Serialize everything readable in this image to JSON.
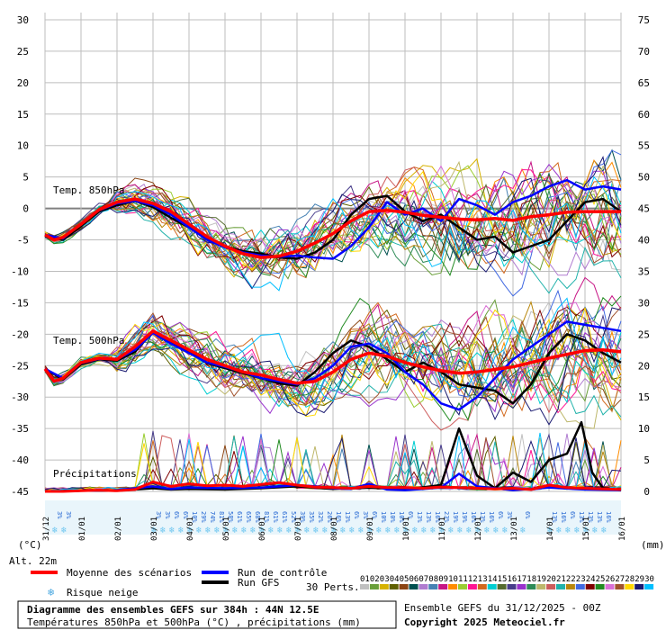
{
  "chart_data": {
    "type": "line",
    "title": "Diagramme des ensembles GEFS sur 384h : 44N 12.5E",
    "subtitle": "Températures 850hPa et 500hPa (°C) , précipitations (mm)",
    "run_info": "Ensemble GEFS du 31/12/2025 - 00Z",
    "copyright": "Copyright 2025 Meteociel.fr",
    "left_axis_label": "(°C)",
    "right_axis_label": "(mm)",
    "altitude": "Alt. 22m",
    "left_ticks": [
      "30",
      "25",
      "20",
      "15",
      "10",
      "5",
      "0",
      "-5",
      "-10",
      "-15",
      "-20",
      "-25",
      "-30",
      "-35",
      "-40",
      "-45"
    ],
    "right_ticks": [
      "75",
      "70",
      "65",
      "60",
      "55",
      "50",
      "45",
      "40",
      "35",
      "30",
      "25",
      "20",
      "15",
      "10",
      "5",
      "0"
    ],
    "ylim_left": [
      -45,
      30
    ],
    "ylim_right": [
      0,
      75
    ],
    "date_labels": [
      "31/12",
      "01/01",
      "02/01",
      "03/01",
      "04/01",
      "05/01",
      "06/01",
      "07/01",
      "08/01",
      "09/01",
      "10/01",
      "11/01",
      "12/01",
      "13/01",
      "14/01",
      "15/01",
      "16/01"
    ],
    "panel_labels": {
      "t850": "Temp. 850hPa",
      "t500": "Temp. 500hPa",
      "precip": "Précipitations"
    },
    "legend": {
      "mean": "Moyenne des scénarios",
      "control": "Run de contrôle",
      "gfs": "Run GFS",
      "snow": "Risque neige",
      "perts": "30 Perts."
    },
    "perturbation_numbers": [
      "01",
      "02",
      "03",
      "04",
      "05",
      "06",
      "07",
      "08",
      "09",
      "10",
      "11",
      "12",
      "13",
      "14",
      "15",
      "16",
      "17",
      "18",
      "19",
      "20",
      "21",
      "22",
      "23",
      "24",
      "25",
      "26",
      "27",
      "28",
      "29",
      "30"
    ],
    "perturbation_colors": [
      "#c0c0c0",
      "#6a9f3a",
      "#d6b200",
      "#606000",
      "#8b4513",
      "#005050",
      "#b07cd0",
      "#4682b4",
      "#c71585",
      "#ff8c00",
      "#9acd32",
      "#ff1493",
      "#d2691e",
      "#00ced1",
      "#556b2f",
      "#483d8b",
      "#9932cc",
      "#2e8b57",
      "#bdb76b",
      "#cd5c5c",
      "#20b2aa",
      "#b8860b",
      "#4169e1",
      "#800000",
      "#228b22",
      "#da70d6",
      "#a0522d",
      "#ffd700",
      "#191970",
      "#00bfff"
    ],
    "series_colors": {
      "mean": "#ff0000",
      "control": "#0000ff",
      "gfs": "#000000",
      "snow": "#6ec6f0"
    },
    "snow_percent": [
      {
        "day": 0.25,
        "value": "3%"
      },
      {
        "day": 0.5,
        "value": "3%"
      },
      {
        "day": 3.0,
        "value": "3%"
      },
      {
        "day": 3.25,
        "value": "3%"
      },
      {
        "day": 3.5,
        "value": "6%"
      },
      {
        "day": 3.75,
        "value": "6%"
      },
      {
        "day": 4.0,
        "value": "10%"
      },
      {
        "day": 4.25,
        "value": "29%"
      },
      {
        "day": 4.5,
        "value": "74%"
      },
      {
        "day": 4.75,
        "value": "81%"
      },
      {
        "day": 5.0,
        "value": "58%"
      },
      {
        "day": 5.25,
        "value": "61%"
      },
      {
        "day": 5.5,
        "value": "65%"
      },
      {
        "day": 5.75,
        "value": "68%"
      },
      {
        "day": 6.0,
        "value": "81%"
      },
      {
        "day": 6.25,
        "value": "61%"
      },
      {
        "day": 6.5,
        "value": "61%"
      },
      {
        "day": 6.75,
        "value": "52%"
      },
      {
        "day": 7.0,
        "value": "39%"
      },
      {
        "day": 7.25,
        "value": "35%"
      },
      {
        "day": 7.5,
        "value": "32%"
      },
      {
        "day": 7.75,
        "value": "26%"
      },
      {
        "day": 8.0,
        "value": "16%"
      },
      {
        "day": 8.25,
        "value": "13%"
      },
      {
        "day": 8.5,
        "value": "6%"
      },
      {
        "day": 8.75,
        "value": "3%"
      },
      {
        "day": 9.0,
        "value": "6%"
      },
      {
        "day": 9.25,
        "value": "10%"
      },
      {
        "day": 9.5,
        "value": "10%"
      },
      {
        "day": 9.75,
        "value": "10%"
      },
      {
        "day": 10.0,
        "value": "6%"
      },
      {
        "day": 10.25,
        "value": "13%"
      },
      {
        "day": 10.5,
        "value": "13%"
      },
      {
        "day": 10.75,
        "value": "16%"
      },
      {
        "day": 11.0,
        "value": "23%"
      },
      {
        "day": 11.25,
        "value": "19%"
      },
      {
        "day": 11.5,
        "value": "19%"
      },
      {
        "day": 11.75,
        "value": "16%"
      },
      {
        "day": 12.0,
        "value": "13%"
      },
      {
        "day": 12.25,
        "value": "16%"
      },
      {
        "day": 12.5,
        "value": "6%"
      },
      {
        "day": 12.75,
        "value": "3%"
      },
      {
        "day": 13.25,
        "value": "6%"
      },
      {
        "day": 14.0,
        "value": "13%"
      },
      {
        "day": 14.25,
        "value": "16%"
      },
      {
        "day": 14.5,
        "value": "6%"
      },
      {
        "day": 14.75,
        "value": "13%"
      },
      {
        "day": 15.0,
        "value": "13%"
      },
      {
        "day": 15.25,
        "value": "13%"
      },
      {
        "day": 15.5,
        "value": "16%"
      }
    ],
    "t850_mean": [
      [
        0,
        -4.2
      ],
      [
        0.25,
        -5
      ],
      [
        0.5,
        -4.6
      ],
      [
        1,
        -2.5
      ],
      [
        1.5,
        -0.2
      ],
      [
        2,
        1.0
      ],
      [
        2.5,
        1.5
      ],
      [
        3,
        0.8
      ],
      [
        3.5,
        -0.5
      ],
      [
        4,
        -2.5
      ],
      [
        4.5,
        -4.5
      ],
      [
        5,
        -6
      ],
      [
        5.5,
        -7.2
      ],
      [
        6,
        -7.8
      ],
      [
        6.5,
        -7.6
      ],
      [
        7,
        -6.8
      ],
      [
        7.5,
        -5.5
      ],
      [
        8,
        -4
      ],
      [
        8.5,
        -2
      ],
      [
        9,
        -0.5
      ],
      [
        9.5,
        -0.3
      ],
      [
        10,
        -0.6
      ],
      [
        10.5,
        -1.1
      ],
      [
        11,
        -1.4
      ],
      [
        11.5,
        -1.7
      ],
      [
        12,
        -1.8
      ],
      [
        12.5,
        -1.6
      ],
      [
        13,
        -1.9
      ],
      [
        13.5,
        -1.3
      ],
      [
        14,
        -1.0
      ],
      [
        14.5,
        -0.6
      ],
      [
        15,
        -0.5
      ],
      [
        15.5,
        -0.5
      ],
      [
        16,
        -0.5
      ]
    ],
    "t850_control": [
      [
        0,
        -4.2
      ],
      [
        0.5,
        -4.8
      ],
      [
        1,
        -2.4
      ],
      [
        1.5,
        -0.3
      ],
      [
        2,
        0.8
      ],
      [
        2.5,
        1.2
      ],
      [
        3,
        0.5
      ],
      [
        3.5,
        -1
      ],
      [
        4,
        -3
      ],
      [
        4.5,
        -5
      ],
      [
        5,
        -6.2
      ],
      [
        5.5,
        -7
      ],
      [
        6,
        -7.5
      ],
      [
        6.5,
        -7.7
      ],
      [
        7,
        -7.5
      ],
      [
        7.5,
        -7.8
      ],
      [
        8,
        -8
      ],
      [
        8.5,
        -6
      ],
      [
        9,
        -3
      ],
      [
        9.5,
        1
      ],
      [
        10,
        -1
      ],
      [
        10.5,
        0
      ],
      [
        11,
        -2
      ],
      [
        11.5,
        1.5
      ],
      [
        12,
        0.5
      ],
      [
        12.5,
        -1
      ],
      [
        13,
        1
      ],
      [
        13.5,
        2
      ],
      [
        14,
        3.5
      ],
      [
        14.5,
        4.5
      ],
      [
        15,
        3
      ],
      [
        15.5,
        3.5
      ],
      [
        16,
        3
      ]
    ],
    "t850_gfs": [
      [
        0,
        -4.2
      ],
      [
        0.5,
        -5
      ],
      [
        1,
        -2.8
      ],
      [
        1.5,
        -0.5
      ],
      [
        2,
        0.5
      ],
      [
        2.5,
        1.2
      ],
      [
        3,
        0.2
      ],
      [
        3.5,
        -1.5
      ],
      [
        4,
        -3
      ],
      [
        4.5,
        -4.8
      ],
      [
        5,
        -6
      ],
      [
        5.5,
        -6.8
      ],
      [
        6,
        -7.2
      ],
      [
        6.5,
        -7.8
      ],
      [
        7,
        -8
      ],
      [
        7.5,
        -7
      ],
      [
        8,
        -5
      ],
      [
        8.5,
        -1
      ],
      [
        9,
        1.5
      ],
      [
        9.5,
        2
      ],
      [
        10,
        -0.5
      ],
      [
        10.5,
        -2
      ],
      [
        11,
        -1
      ],
      [
        11.5,
        -3
      ],
      [
        12,
        -5
      ],
      [
        12.5,
        -4.5
      ],
      [
        13,
        -7
      ],
      [
        13.5,
        -6
      ],
      [
        14,
        -5
      ],
      [
        14.5,
        -2
      ],
      [
        15,
        1
      ],
      [
        15.5,
        1.5
      ],
      [
        16,
        -0.5
      ]
    ],
    "t500_mean": [
      [
        0,
        -25.5
      ],
      [
        0.25,
        -27.5
      ],
      [
        0.5,
        -27
      ],
      [
        1,
        -24.5
      ],
      [
        1.5,
        -23.8
      ],
      [
        2,
        -24
      ],
      [
        2.5,
        -22
      ],
      [
        3,
        -19.5
      ],
      [
        3.5,
        -21
      ],
      [
        4,
        -22.5
      ],
      [
        4.5,
        -24
      ],
      [
        5,
        -25
      ],
      [
        5.5,
        -26
      ],
      [
        6,
        -26.5
      ],
      [
        6.5,
        -27.2
      ],
      [
        7,
        -27.8
      ],
      [
        7.5,
        -27.5
      ],
      [
        8,
        -26
      ],
      [
        8.5,
        -24
      ],
      [
        9,
        -23
      ],
      [
        9.5,
        -23.5
      ],
      [
        10,
        -24.5
      ],
      [
        10.5,
        -25.2
      ],
      [
        11,
        -25.8
      ],
      [
        11.5,
        -26.2
      ],
      [
        12,
        -26
      ],
      [
        12.5,
        -25.6
      ],
      [
        13,
        -25.2
      ],
      [
        13.5,
        -24.5
      ],
      [
        14,
        -23.8
      ],
      [
        14.5,
        -23.2
      ],
      [
        15,
        -22.6
      ],
      [
        15.5,
        -22.5
      ],
      [
        16,
        -22.8
      ]
    ],
    "t500_control": [
      [
        0,
        -25.5
      ],
      [
        0.5,
        -27
      ],
      [
        1,
        -24.6
      ],
      [
        1.5,
        -23.9
      ],
      [
        2,
        -24
      ],
      [
        2.5,
        -22.5
      ],
      [
        3,
        -19.8
      ],
      [
        3.5,
        -21.5
      ],
      [
        4,
        -23
      ],
      [
        4.5,
        -24.5
      ],
      [
        5,
        -25.2
      ],
      [
        5.5,
        -26
      ],
      [
        6,
        -27
      ],
      [
        6.5,
        -27.5
      ],
      [
        7,
        -28
      ],
      [
        7.5,
        -27
      ],
      [
        8,
        -25
      ],
      [
        8.5,
        -22
      ],
      [
        9,
        -21.5
      ],
      [
        9.5,
        -23
      ],
      [
        10,
        -26
      ],
      [
        10.5,
        -28
      ],
      [
        11,
        -31
      ],
      [
        11.5,
        -32
      ],
      [
        12,
        -30
      ],
      [
        12.5,
        -27
      ],
      [
        13,
        -24
      ],
      [
        13.5,
        -22
      ],
      [
        14,
        -20
      ],
      [
        14.5,
        -18
      ],
      [
        15,
        -18.5
      ],
      [
        15.5,
        -19
      ],
      [
        16,
        -19.5
      ]
    ],
    "t500_gfs": [
      [
        0,
        -25.5
      ],
      [
        0.5,
        -27.2
      ],
      [
        1,
        -24.8
      ],
      [
        1.5,
        -24
      ],
      [
        2,
        -24.2
      ],
      [
        2.5,
        -22.8
      ],
      [
        3,
        -19.5
      ],
      [
        3.5,
        -21.2
      ],
      [
        4,
        -22.8
      ],
      [
        4.5,
        -24.6
      ],
      [
        5,
        -25.4
      ],
      [
        5.5,
        -26.2
      ],
      [
        6,
        -27
      ],
      [
        6.5,
        -27.8
      ],
      [
        7,
        -28.2
      ],
      [
        7.5,
        -26
      ],
      [
        8,
        -23
      ],
      [
        8.5,
        -21
      ],
      [
        9,
        -22
      ],
      [
        9.5,
        -24
      ],
      [
        10,
        -26
      ],
      [
        10.5,
        -24.5
      ],
      [
        11,
        -26
      ],
      [
        11.5,
        -28
      ],
      [
        12,
        -28.5
      ],
      [
        12.5,
        -29
      ],
      [
        13,
        -31
      ],
      [
        13.5,
        -28
      ],
      [
        14,
        -23
      ],
      [
        14.5,
        -20
      ],
      [
        15,
        -21
      ],
      [
        15.5,
        -23
      ],
      [
        16,
        -24.5
      ]
    ],
    "precip_mean": [
      [
        0,
        0
      ],
      [
        0.5,
        0
      ],
      [
        1,
        0.1
      ],
      [
        1.5,
        0.2
      ],
      [
        2,
        0.1
      ],
      [
        2.5,
        0.3
      ],
      [
        3,
        1.5
      ],
      [
        3.5,
        0.8
      ],
      [
        4,
        1.2
      ],
      [
        4.5,
        0.9
      ],
      [
        5,
        1.0
      ],
      [
        5.5,
        0.8
      ],
      [
        6,
        1.1
      ],
      [
        6.5,
        1.4
      ],
      [
        7,
        1.0
      ],
      [
        7.5,
        0.7
      ],
      [
        8,
        0.6
      ],
      [
        8.5,
        0.5
      ],
      [
        9,
        0.8
      ],
      [
        9.5,
        0.6
      ],
      [
        10,
        0.6
      ],
      [
        10.5,
        0.5
      ],
      [
        11,
        0.7
      ],
      [
        11.5,
        0.6
      ],
      [
        12,
        0.5
      ],
      [
        12.5,
        0.4
      ],
      [
        13,
        0.5
      ],
      [
        13.5,
        0.3
      ],
      [
        14,
        1.0
      ],
      [
        14.5,
        0.6
      ],
      [
        15,
        0.5
      ],
      [
        15.5,
        0.4
      ],
      [
        16,
        0.3
      ]
    ],
    "precip_control": [
      [
        0,
        0
      ],
      [
        1,
        0.1
      ],
      [
        2,
        0.2
      ],
      [
        3,
        0.8
      ],
      [
        3.5,
        0.4
      ],
      [
        4,
        0.6
      ],
      [
        5,
        0.5
      ],
      [
        6,
        0.6
      ],
      [
        7,
        1.0
      ],
      [
        7.5,
        0.8
      ],
      [
        8,
        0.5
      ],
      [
        8.5,
        0.4
      ],
      [
        9,
        1.2
      ],
      [
        9.5,
        0.3
      ],
      [
        10,
        0.2
      ],
      [
        10.5,
        0.4
      ],
      [
        11,
        0.6
      ],
      [
        11.5,
        2.8
      ],
      [
        12,
        0.8
      ],
      [
        12.5,
        0.5
      ],
      [
        13,
        0.2
      ],
      [
        14,
        0.6
      ],
      [
        15,
        0.3
      ],
      [
        16,
        0.2
      ]
    ],
    "precip_gfs": [
      [
        0,
        0
      ],
      [
        1,
        0.1
      ],
      [
        2,
        0.1
      ],
      [
        3,
        0.5
      ],
      [
        3.5,
        0.3
      ],
      [
        4,
        0.4
      ],
      [
        5,
        0.3
      ],
      [
        6,
        0.5
      ],
      [
        7,
        0.8
      ],
      [
        8,
        0.4
      ],
      [
        9,
        0.6
      ],
      [
        10,
        0.3
      ],
      [
        11,
        1.0
      ],
      [
        11.5,
        10
      ],
      [
        12,
        2.5
      ],
      [
        12.5,
        0.5
      ],
      [
        13,
        3
      ],
      [
        13.5,
        1.5
      ],
      [
        14,
        5
      ],
      [
        14.5,
        6
      ],
      [
        14.9,
        11
      ],
      [
        15.2,
        3
      ],
      [
        15.5,
        0.5
      ],
      [
        16,
        0.2
      ]
    ]
  }
}
